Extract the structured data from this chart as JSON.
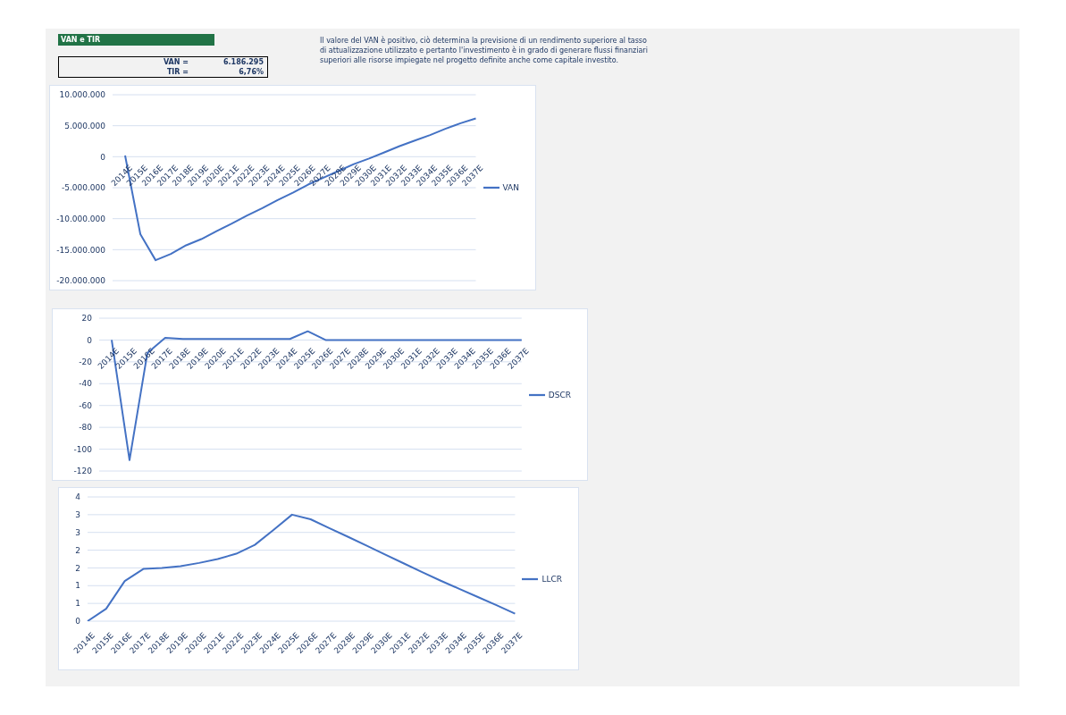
{
  "chart_data": [
    {
      "type": "line",
      "title": "VAN e TIR",
      "annotations": [
        "VAN =",
        "6.186.295",
        "TIR =",
        "6,76%",
        "Il valore del VAN è positivo, ciò determina la previsione di un rendimento superiore al tasso di attualizzazione utilizzato e pertanto l'investimento è in grado di generare flussi finanziari superiori alle risorse impiegate nel progetto definite anche come capitale investito."
      ],
      "categories": [
        "2014E",
        "2015E",
        "2016E",
        "2017E",
        "2018E",
        "2019E",
        "2020E",
        "2021E",
        "2022E",
        "2023E",
        "2024E",
        "2025E",
        "2026E",
        "2027E",
        "2028E",
        "2029E",
        "2030E",
        "2031E",
        "2032E",
        "2033E",
        "2034E",
        "2035E",
        "2036E",
        "2037E"
      ],
      "series": [
        {
          "name": "VAN",
          "color": "#4472c4",
          "values": [
            200000,
            -12500000,
            -16700000,
            -15700000,
            -14300000,
            -13300000,
            -12000000,
            -10800000,
            -9500000,
            -8300000,
            -7000000,
            -5800000,
            -4500000,
            -3400000,
            -2300000,
            -1200000,
            -300000,
            700000,
            1700000,
            2600000,
            3500000,
            4500000,
            5400000,
            6186295
          ]
        }
      ],
      "ylim": [
        -20000000,
        10000000
      ],
      "yticks": [
        {
          "value": -20000000,
          "label": "-20.000.000"
        },
        {
          "value": -15000000,
          "label": "-15.000.000"
        },
        {
          "value": -10000000,
          "label": "-10.000.000"
        },
        {
          "value": -5000000,
          "label": "-5.000.000"
        },
        {
          "value": 0,
          "label": "0"
        },
        {
          "value": 5000000,
          "label": "5.000.000"
        },
        {
          "value": 10000000,
          "label": "10.000.000"
        }
      ],
      "grid": "y",
      "legend": "right",
      "line_style": "solid"
    },
    {
      "type": "line",
      "categories": [
        "2014E",
        "2015E",
        "2016E",
        "2017E",
        "2018E",
        "2019E",
        "2020E",
        "2021E",
        "2022E",
        "2023E",
        "2024E",
        "2025E",
        "2026E",
        "2027E",
        "2028E",
        "2029E",
        "2030E",
        "2031E",
        "2032E",
        "2033E",
        "2034E",
        "2035E",
        "2036E",
        "2037E"
      ],
      "series": [
        {
          "name": "DSCR",
          "color": "#4472c4",
          "values": [
            0,
            -110,
            -12,
            2,
            1,
            1,
            1,
            1,
            1,
            1,
            1,
            8,
            0,
            0,
            0,
            0,
            0,
            0,
            0,
            0,
            0,
            0,
            0,
            0
          ]
        }
      ],
      "ylim": [
        -120,
        20
      ],
      "yticks": [
        -120,
        -100,
        -80,
        -60,
        -40,
        -20,
        0,
        20
      ],
      "grid": "y",
      "legend": "right",
      "line_style": "solid"
    },
    {
      "type": "line",
      "categories": [
        "2014E",
        "2015E",
        "2016E",
        "2017E",
        "2018E",
        "2019E",
        "2020E",
        "2021E",
        "2022E",
        "2023E",
        "2024E",
        "2025E",
        "2026E",
        "2027E",
        "2028E",
        "2029E",
        "2030E",
        "2031E",
        "2032E",
        "2033E",
        "2034E",
        "2035E",
        "2036E",
        "2037E"
      ],
      "series": [
        {
          "name": "LLCR",
          "color": "#4472c4",
          "values": [
            0,
            0.35,
            1.13,
            1.47,
            1.5,
            1.55,
            1.64,
            1.75,
            1.9,
            2.15,
            2.57,
            3.0,
            2.87,
            2.62,
            2.38,
            2.13,
            1.88,
            1.63,
            1.38,
            1.14,
            0.91,
            0.68,
            0.45,
            0.21
          ]
        }
      ],
      "ylim": [
        0,
        3.5
      ],
      "yticks": [
        {
          "value": 0,
          "label": "0"
        },
        {
          "value": 0.5,
          "label": "1"
        },
        {
          "value": 1,
          "label": "1"
        },
        {
          "value": 1.5,
          "label": "2"
        },
        {
          "value": 2,
          "label": "2"
        },
        {
          "value": 2.5,
          "label": "3"
        },
        {
          "value": 3,
          "label": "3"
        },
        {
          "value": 3.5,
          "label": "4"
        }
      ],
      "grid": "y",
      "legend": "right",
      "line_style": "solid"
    }
  ]
}
